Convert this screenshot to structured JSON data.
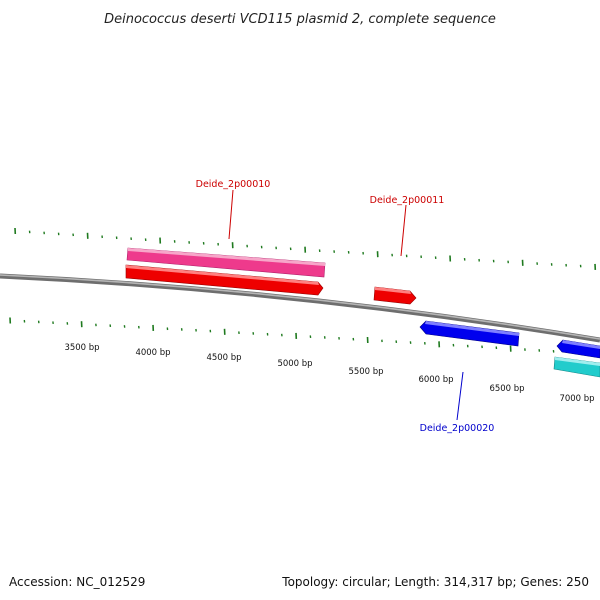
{
  "title": "Deinococcus deserti VCD115 plasmid 2, complete sequence",
  "footer": {
    "accession": "Accession: NC_012529",
    "summary": "Topology: circular; Length: 314,317 bp; Genes: 250"
  },
  "scale_labels": [
    "3500 bp",
    "4000 bp",
    "4500 bp",
    "5000 bp",
    "5500 bp",
    "6000 bp",
    "6500 bp",
    "7000 bp"
  ],
  "gene_labels": [
    {
      "text": "Deide_2p00010",
      "color": "#cc0000"
    },
    {
      "text": "Deide_2p00011",
      "color": "#cc0000"
    },
    {
      "text": "Deide_2p00020",
      "color": "#0000cc"
    }
  ],
  "colors": {
    "backbone": "#888888",
    "tick": "#1f7a1f",
    "gene_forward": "#ee0000",
    "gene_reverse": "#0000ee",
    "cds_pink": "#ee3a8c",
    "cds_cyan": "#22cccc"
  }
}
